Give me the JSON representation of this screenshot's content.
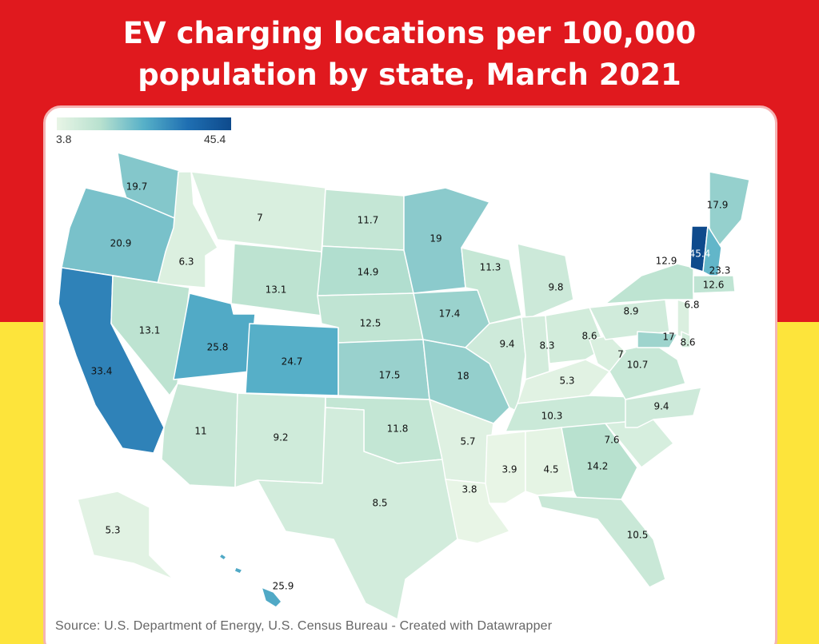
{
  "title": {
    "line1": "EV charging locations per 100,000",
    "line2": "population by state, March 2021"
  },
  "legend": {
    "min": "3.8",
    "max": "45.4",
    "min_value": 3.8,
    "max_value": 45.4
  },
  "source": "Source: U.S. Department of Energy, U.S. Census Bureau - Created with Datawrapper",
  "colors": {
    "red_band": "#e0191e",
    "yellow_band": "#fde43b",
    "low": "#e8f5e6",
    "high": "#0e4a8c"
  },
  "states": [
    {
      "state": "WA",
      "value": 19.7,
      "label": "19.7"
    },
    {
      "state": "OR",
      "value": 20.9,
      "label": "20.9"
    },
    {
      "state": "CA",
      "value": 33.4,
      "label": "33.4"
    },
    {
      "state": "ID",
      "value": 6.3,
      "label": "6.3"
    },
    {
      "state": "NV",
      "value": 13.1,
      "label": "13.1"
    },
    {
      "state": "MT",
      "value": 7,
      "label": "7"
    },
    {
      "state": "WY",
      "value": 13.1,
      "label": "13.1"
    },
    {
      "state": "UT",
      "value": 25.8,
      "label": "25.8"
    },
    {
      "state": "CO",
      "value": 24.7,
      "label": "24.7"
    },
    {
      "state": "AZ",
      "value": 11,
      "label": "11"
    },
    {
      "state": "NM",
      "value": 9.2,
      "label": "9.2"
    },
    {
      "state": "ND",
      "value": 11.7,
      "label": "11.7"
    },
    {
      "state": "SD",
      "value": 14.9,
      "label": "14.9"
    },
    {
      "state": "NE",
      "value": 12.5,
      "label": "12.5"
    },
    {
      "state": "KS",
      "value": 17.5,
      "label": "17.5"
    },
    {
      "state": "OK",
      "value": 11.8,
      "label": "11.8"
    },
    {
      "state": "TX",
      "value": 8.5,
      "label": "8.5"
    },
    {
      "state": "MN",
      "value": 19,
      "label": "19"
    },
    {
      "state": "IA",
      "value": 17.4,
      "label": "17.4"
    },
    {
      "state": "MO",
      "value": 18,
      "label": "18"
    },
    {
      "state": "AR",
      "value": 5.7,
      "label": "5.7"
    },
    {
      "state": "LA",
      "value": 3.8,
      "label": "3.8"
    },
    {
      "state": "WI",
      "value": 11.3,
      "label": "11.3"
    },
    {
      "state": "IL",
      "value": 9.4,
      "label": "9.4"
    },
    {
      "state": "MI",
      "value": 9.8,
      "label": "9.8"
    },
    {
      "state": "IN",
      "value": 8.3,
      "label": "8.3"
    },
    {
      "state": "OH",
      "value": 8.6,
      "label": "8.6"
    },
    {
      "state": "KY",
      "value": 5.3,
      "label": "5.3"
    },
    {
      "state": "TN",
      "value": 10.3,
      "label": "10.3"
    },
    {
      "state": "MS",
      "value": 3.9,
      "label": "3.9"
    },
    {
      "state": "AL",
      "value": 4.5,
      "label": "4.5"
    },
    {
      "state": "GA",
      "value": 14.2,
      "label": "14.2"
    },
    {
      "state": "FL",
      "value": 10.5,
      "label": "10.5"
    },
    {
      "state": "SC",
      "value": 7.6,
      "label": "7.6"
    },
    {
      "state": "NC",
      "value": 9.4,
      "label": "9.4"
    },
    {
      "state": "VA",
      "value": 10.7,
      "label": "10.7"
    },
    {
      "state": "WV",
      "value": 7,
      "label": "7"
    },
    {
      "state": "PA",
      "value": 8.9,
      "label": "8.9"
    },
    {
      "state": "NY",
      "value": 12.9,
      "label": "12.9"
    },
    {
      "state": "VT",
      "value": 45.4,
      "label": "45.4"
    },
    {
      "state": "ME",
      "value": 17.9,
      "label": "17.9"
    },
    {
      "state": "NH",
      "value": 23.3,
      "label": "23.3"
    },
    {
      "state": "MA",
      "value": 12.6,
      "label": "12.6"
    },
    {
      "state": "NJ",
      "value": 6.8,
      "label": "6.8"
    },
    {
      "state": "MD",
      "value": 17,
      "label": "17"
    },
    {
      "state": "DE",
      "value": 8.6,
      "label": "8.6"
    },
    {
      "state": "AK",
      "value": 5.3,
      "label": "5.3"
    },
    {
      "state": "HI",
      "value": 25.9,
      "label": "25.9"
    }
  ]
}
